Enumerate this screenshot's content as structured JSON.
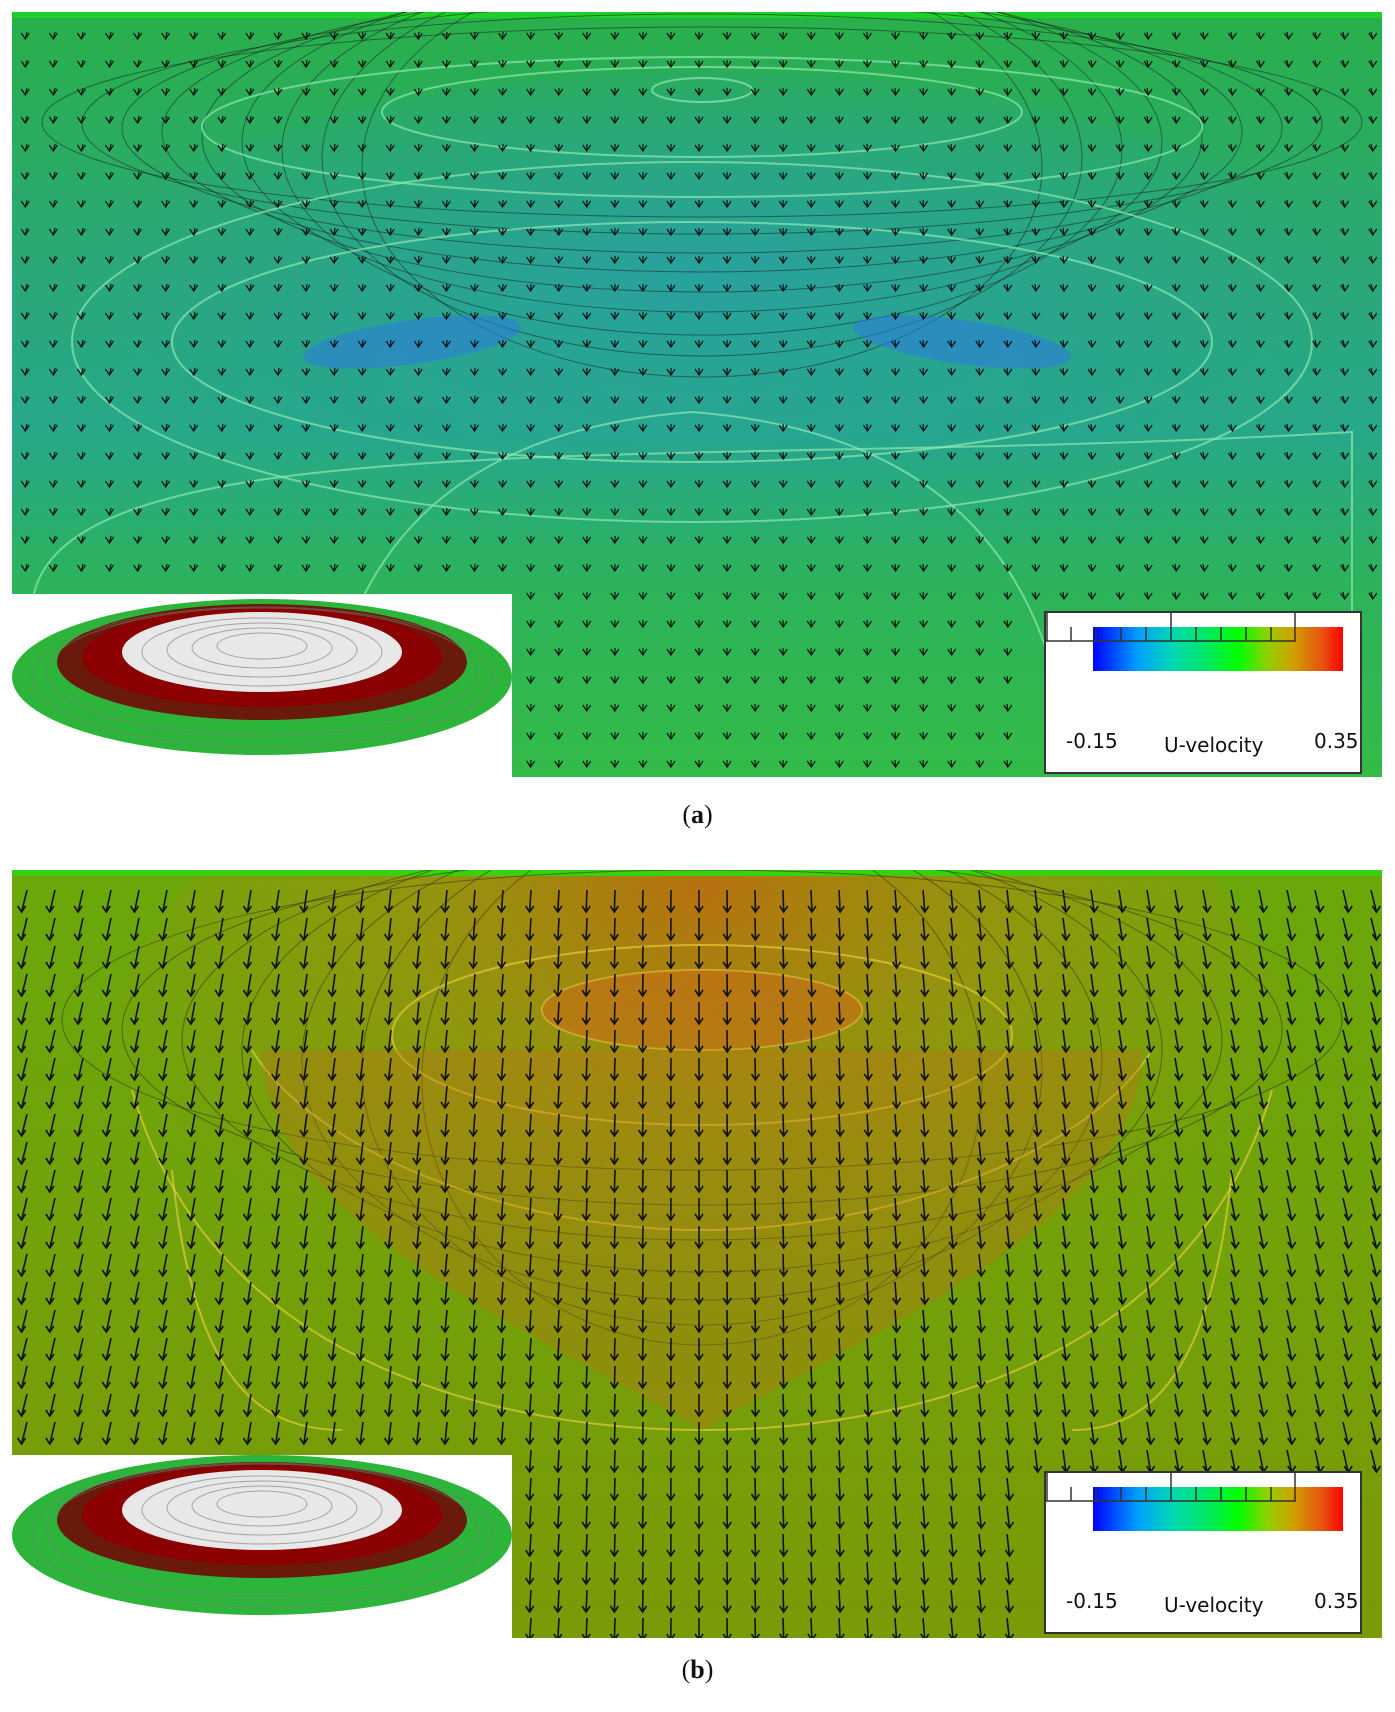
{
  "panels": [
    {
      "id": "a",
      "caption_open": "(",
      "caption_letter": "a",
      "caption_close": ")",
      "legend": {
        "min_label": "-0.15",
        "max_label": "0.35",
        "title": "U-velocity"
      },
      "colors": {
        "base": "#2fc04a",
        "mid": "#20b8a0",
        "low": "#2f8fd8"
      }
    },
    {
      "id": "b",
      "caption_open": "(",
      "caption_letter": "b",
      "caption_close": ")",
      "legend": {
        "min_label": "-0.15",
        "max_label": "0.35",
        "title": "U-velocity"
      },
      "colors": {
        "base": "#7ab000",
        "mid": "#a8a000",
        "high": "#c87810"
      }
    }
  ]
}
